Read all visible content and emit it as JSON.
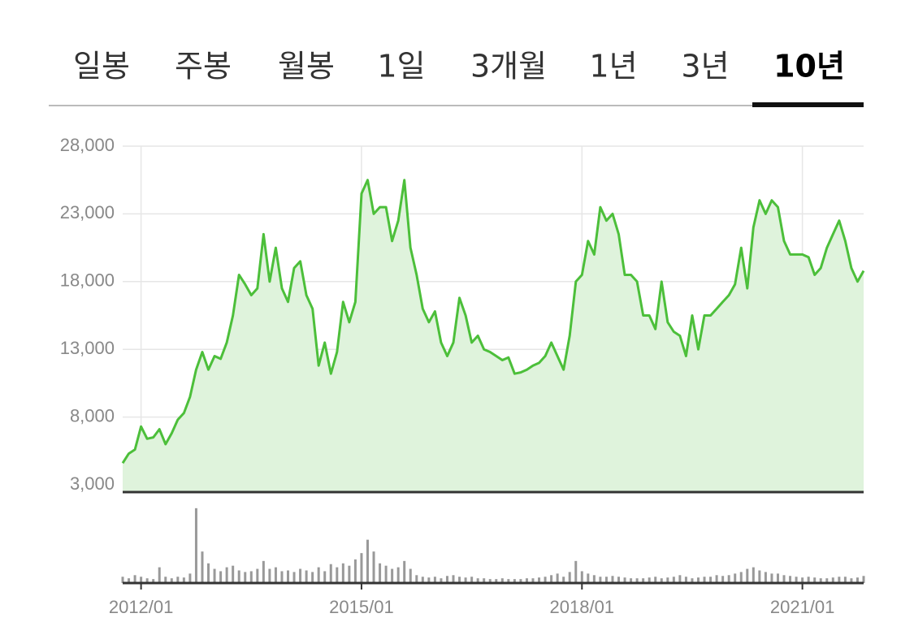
{
  "tabs": {
    "items": [
      "일봉",
      "주봉",
      "월봉",
      "1일",
      "3개월",
      "1년",
      "3년",
      "10년"
    ],
    "selected": 7
  },
  "chart_data": [
    {
      "type": "line",
      "color": "#4cbf3a",
      "fill": "#dff3dc",
      "grid": true,
      "x": [
        "2011/10",
        "2011/11",
        "2011/12",
        "2012/01",
        "2012/02",
        "2012/03",
        "2012/04",
        "2012/05",
        "2012/06",
        "2012/07",
        "2012/08",
        "2012/09",
        "2012/10",
        "2012/11",
        "2012/12",
        "2013/01",
        "2013/02",
        "2013/03",
        "2013/04",
        "2013/05",
        "2013/06",
        "2013/07",
        "2013/08",
        "2013/09",
        "2013/10",
        "2013/11",
        "2013/12",
        "2014/01",
        "2014/02",
        "2014/03",
        "2014/04",
        "2014/05",
        "2014/06",
        "2014/07",
        "2014/08",
        "2014/09",
        "2014/10",
        "2014/11",
        "2014/12",
        "2015/01",
        "2015/02",
        "2015/03",
        "2015/04",
        "2015/05",
        "2015/06",
        "2015/07",
        "2015/08",
        "2015/09",
        "2015/10",
        "2015/11",
        "2015/12",
        "2016/01",
        "2016/02",
        "2016/03",
        "2016/04",
        "2016/05",
        "2016/06",
        "2016/07",
        "2016/08",
        "2016/09",
        "2016/10",
        "2016/11",
        "2016/12",
        "2017/01",
        "2017/02",
        "2017/03",
        "2017/04",
        "2017/05",
        "2017/06",
        "2017/07",
        "2017/08",
        "2017/09",
        "2017/10",
        "2017/11",
        "2017/12",
        "2018/01",
        "2018/02",
        "2018/03",
        "2018/04",
        "2018/05",
        "2018/06",
        "2018/07",
        "2018/08",
        "2018/09",
        "2018/10",
        "2018/11",
        "2018/12",
        "2019/01",
        "2019/02",
        "2019/03",
        "2019/04",
        "2019/05",
        "2019/06",
        "2019/07",
        "2019/08",
        "2019/09",
        "2019/10",
        "2019/11",
        "2019/12",
        "2020/01",
        "2020/02",
        "2020/03",
        "2020/04",
        "2020/05",
        "2020/06",
        "2020/07",
        "2020/08",
        "2020/09",
        "2020/10",
        "2020/11",
        "2020/12",
        "2021/01",
        "2021/02",
        "2021/03",
        "2021/04",
        "2021/05",
        "2021/06",
        "2021/07",
        "2021/08",
        "2021/09",
        "2021/10",
        "2021/11"
      ],
      "values": [
        4600,
        5300,
        5600,
        7300,
        6400,
        6500,
        7100,
        6000,
        6800,
        7800,
        8300,
        9500,
        11500,
        12800,
        11500,
        12500,
        12300,
        13500,
        15500,
        18500,
        17800,
        17000,
        17500,
        21500,
        18000,
        20500,
        17500,
        16500,
        19000,
        19500,
        17000,
        16000,
        11800,
        13500,
        11200,
        12800,
        16500,
        15000,
        16500,
        24500,
        25500,
        23000,
        23500,
        23500,
        21000,
        22500,
        25500,
        20500,
        18500,
        16000,
        15000,
        15800,
        13500,
        12500,
        13500,
        16800,
        15500,
        13500,
        14000,
        13000,
        12800,
        12500,
        12200,
        12400,
        11200,
        11300,
        11500,
        11800,
        12000,
        12500,
        13500,
        12500,
        11500,
        14000,
        18000,
        18500,
        21000,
        20000,
        23500,
        22500,
        23000,
        21500,
        18500,
        18500,
        18000,
        15500,
        15500,
        14500,
        18000,
        15000,
        14300,
        14000,
        12500,
        15500,
        13000,
        15500,
        15500,
        16000,
        16500,
        17000,
        17800,
        20500,
        17500,
        22000,
        24000,
        23000,
        24000,
        23500,
        21000,
        20000,
        20000,
        20000,
        19800,
        18500,
        19000,
        20500,
        21500,
        22500,
        21000,
        19000,
        18000,
        18800
      ],
      "ylim": [
        2460,
        28000
      ],
      "yticks": [
        {
          "value": 3000,
          "label": "3,000"
        },
        {
          "value": 8000,
          "label": "8,000"
        },
        {
          "value": 13000,
          "label": "13,000"
        },
        {
          "value": 18000,
          "label": "18,000"
        },
        {
          "value": 23000,
          "label": "23,000"
        },
        {
          "value": 28000,
          "label": "28,000"
        }
      ],
      "xticks": [
        "2012/01",
        "2015/01",
        "2018/01",
        "2021/01"
      ]
    },
    {
      "type": "bar",
      "color": "#999999",
      "x": [
        "2011/10",
        "2011/11",
        "2011/12",
        "2012/01",
        "2012/02",
        "2012/03",
        "2012/04",
        "2012/05",
        "2012/06",
        "2012/07",
        "2012/08",
        "2012/09",
        "2012/10",
        "2012/11",
        "2012/12",
        "2013/01",
        "2013/02",
        "2013/03",
        "2013/04",
        "2013/05",
        "2013/06",
        "2013/07",
        "2013/08",
        "2013/09",
        "2013/10",
        "2013/11",
        "2013/12",
        "2014/01",
        "2014/02",
        "2014/03",
        "2014/04",
        "2014/05",
        "2014/06",
        "2014/07",
        "2014/08",
        "2014/09",
        "2014/10",
        "2014/11",
        "2014/12",
        "2015/01",
        "2015/02",
        "2015/03",
        "2015/04",
        "2015/05",
        "2015/06",
        "2015/07",
        "2015/08",
        "2015/09",
        "2015/10",
        "2015/11",
        "2015/12",
        "2016/01",
        "2016/02",
        "2016/03",
        "2016/04",
        "2016/05",
        "2016/06",
        "2016/07",
        "2016/08",
        "2016/09",
        "2016/10",
        "2016/11",
        "2016/12",
        "2017/01",
        "2017/02",
        "2017/03",
        "2017/04",
        "2017/05",
        "2017/06",
        "2017/07",
        "2017/08",
        "2017/09",
        "2017/10",
        "2017/11",
        "2017/12",
        "2018/01",
        "2018/02",
        "2018/03",
        "2018/04",
        "2018/05",
        "2018/06",
        "2018/07",
        "2018/08",
        "2018/09",
        "2018/10",
        "2018/11",
        "2018/12",
        "2019/01",
        "2019/02",
        "2019/03",
        "2019/04",
        "2019/05",
        "2019/06",
        "2019/07",
        "2019/08",
        "2019/09",
        "2019/10",
        "2019/11",
        "2019/12",
        "2020/01",
        "2020/02",
        "2020/03",
        "2020/04",
        "2020/05",
        "2020/06",
        "2020/07",
        "2020/08",
        "2020/09",
        "2020/10",
        "2020/11",
        "2020/12",
        "2021/01",
        "2021/02",
        "2021/03",
        "2021/04",
        "2021/05",
        "2021/06",
        "2021/07",
        "2021/08",
        "2021/09",
        "2021/10",
        "2021/11"
      ],
      "values": [
        8,
        6,
        10,
        8,
        6,
        5,
        20,
        8,
        6,
        8,
        7,
        12,
        95,
        40,
        25,
        18,
        15,
        20,
        22,
        16,
        14,
        15,
        18,
        28,
        18,
        20,
        15,
        16,
        14,
        18,
        16,
        14,
        20,
        15,
        24,
        20,
        25,
        22,
        30,
        38,
        55,
        40,
        25,
        22,
        18,
        20,
        28,
        18,
        10,
        8,
        7,
        8,
        6,
        9,
        10,
        8,
        7,
        8,
        6,
        6,
        5,
        5,
        6,
        5,
        5,
        5,
        6,
        6,
        7,
        8,
        10,
        12,
        8,
        14,
        28,
        15,
        12,
        10,
        8,
        8,
        9,
        8,
        7,
        6,
        6,
        6,
        7,
        8,
        6,
        7,
        8,
        10,
        8,
        6,
        7,
        8,
        8,
        10,
        9,
        10,
        12,
        14,
        18,
        20,
        16,
        14,
        12,
        12,
        10,
        9,
        8,
        7,
        8,
        7,
        6,
        6,
        7,
        8,
        8,
        6,
        7,
        9
      ],
      "ylim": [
        0,
        100
      ],
      "xticks": [
        "2012/01",
        "2015/01",
        "2018/01",
        "2021/01"
      ]
    }
  ]
}
